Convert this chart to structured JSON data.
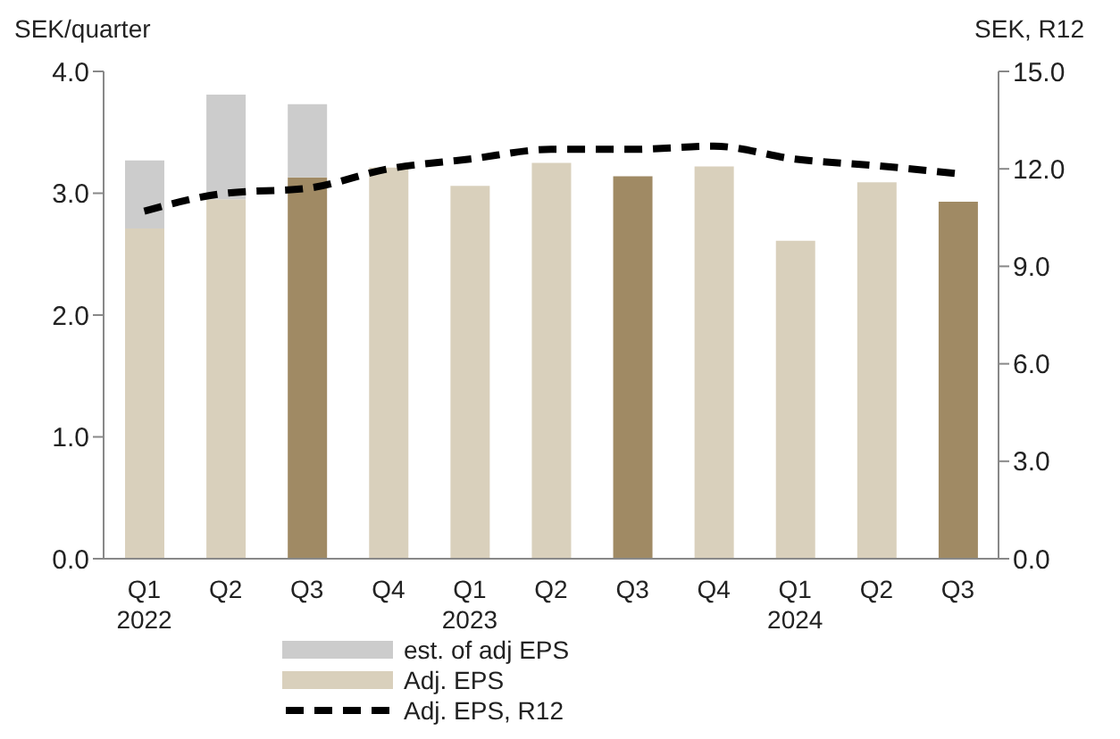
{
  "chart_data": {
    "type": "bar",
    "ylabel": "SEK/quarter",
    "y2label": "SEK, R12",
    "categories": [
      "Q1\n2022",
      "Q2",
      "Q3",
      "Q4",
      "Q1\n2023",
      "Q2",
      "Q3",
      "Q4",
      "Q1\n2024",
      "Q2",
      "Q3"
    ],
    "stacked": true,
    "series": [
      {
        "name": "Adj. EPS",
        "color": "#d9d0bc",
        "colors": [
          "#d9d0bc",
          "#d9d0bc",
          "#a08a64",
          "#d9d0bc",
          "#d9d0bc",
          "#d9d0bc",
          "#a08a64",
          "#d9d0bc",
          "#d9d0bc",
          "#d9d0bc",
          "#a08a64"
        ],
        "values": [
          2.71,
          2.95,
          3.13,
          3.21,
          3.06,
          3.25,
          3.14,
          3.22,
          2.61,
          3.09,
          2.93
        ]
      },
      {
        "name": "est. of adj EPS",
        "color": "#cccccc",
        "values": [
          0.56,
          0.86,
          0.6,
          null,
          null,
          null,
          null,
          null,
          null,
          null,
          null
        ]
      },
      {
        "name": "Adj. EPS, R12",
        "type": "line",
        "axis": "y2",
        "color": "#000000",
        "line_style": "dashed",
        "values": [
          10.7,
          11.25,
          11.4,
          12.0,
          12.3,
          12.6,
          12.6,
          12.7,
          12.3,
          12.1,
          11.85
        ]
      }
    ],
    "ylim": [
      0,
      4
    ],
    "yticks": [
      {
        "value": 0,
        "label": "0.0"
      },
      {
        "value": 1,
        "label": "1.0"
      },
      {
        "value": 2,
        "label": "2.0"
      },
      {
        "value": 3,
        "label": "3.0"
      },
      {
        "value": 4,
        "label": "4.0"
      }
    ],
    "y2lim": [
      0,
      15
    ],
    "y2ticks": [
      {
        "value": 0,
        "label": "0.0"
      },
      {
        "value": 3,
        "label": "3.0"
      },
      {
        "value": 6,
        "label": "6.0"
      },
      {
        "value": 9,
        "label": "9.0"
      },
      {
        "value": 12,
        "label": "12.0"
      },
      {
        "value": 15,
        "label": "15.0"
      }
    ],
    "legend": "bottom",
    "marker": "none"
  }
}
